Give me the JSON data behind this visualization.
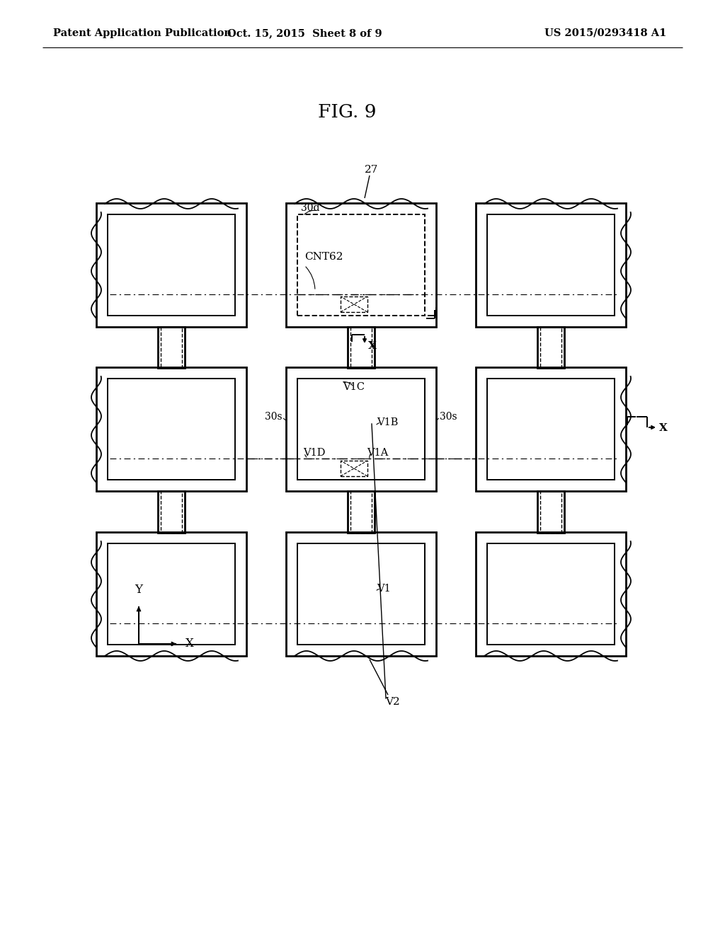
{
  "header_left": "Patent Application Publication",
  "header_center": "Oct. 15, 2015  Sheet 8 of 9",
  "header_right": "US 2015/0293418 A1",
  "fig_title": "FIG. 9",
  "bg": "#ffffff"
}
